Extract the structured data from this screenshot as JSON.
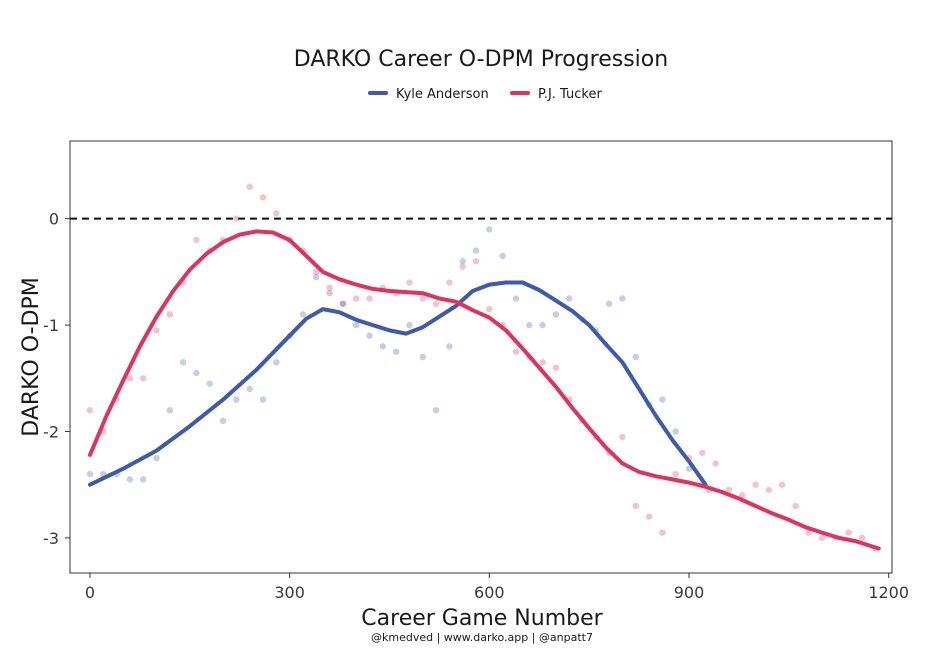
{
  "chart_data": {
    "type": "scatter",
    "title": "DARKO Career O-DPM Progression",
    "xlabel": "Career Game Number",
    "ylabel": "DARKO O-DPM",
    "caption": "@kmedved | www.darko.app | @anpatt7",
    "xlim": [
      -30,
      1205
    ],
    "ylim": [
      -3.33,
      0.73
    ],
    "x_ticks": [
      0,
      300,
      600,
      900,
      1200
    ],
    "x_tick_labels": [
      "0",
      "300",
      "600",
      "900",
      "1200"
    ],
    "y_ticks": [
      0,
      -1,
      -2,
      -3
    ],
    "y_tick_labels": [
      "0",
      "-1",
      "-2",
      "-3"
    ],
    "reference_line": {
      "y": 0,
      "style": "dashed"
    },
    "grid": false,
    "legend_position": "top",
    "series": [
      {
        "name": "Kyle Anderson",
        "color": "#3e5aae",
        "points": [
          [
            0,
            -2.4
          ],
          [
            20,
            -2.4
          ],
          [
            40,
            -2.4
          ],
          [
            60,
            -2.45
          ],
          [
            80,
            -2.45
          ],
          [
            100,
            -2.25
          ],
          [
            120,
            -1.8
          ],
          [
            140,
            -1.35
          ],
          [
            160,
            -1.45
          ],
          [
            180,
            -1.55
          ],
          [
            200,
            -1.9
          ],
          [
            220,
            -1.7
          ],
          [
            240,
            -1.6
          ],
          [
            260,
            -1.7
          ],
          [
            280,
            -1.35
          ],
          [
            300,
            -1.1
          ],
          [
            320,
            -0.9
          ],
          [
            340,
            -0.55
          ],
          [
            360,
            -0.7
          ],
          [
            380,
            -0.8
          ],
          [
            400,
            -1.0
          ],
          [
            420,
            -1.1
          ],
          [
            440,
            -1.2
          ],
          [
            460,
            -1.25
          ],
          [
            480,
            -1.0
          ],
          [
            500,
            -1.3
          ],
          [
            520,
            -1.8
          ],
          [
            540,
            -1.2
          ],
          [
            560,
            -0.4
          ],
          [
            580,
            -0.3
          ],
          [
            600,
            -0.1
          ],
          [
            620,
            -0.35
          ],
          [
            640,
            -0.75
          ],
          [
            660,
            -1.0
          ],
          [
            680,
            -1.0
          ],
          [
            700,
            -0.9
          ],
          [
            720,
            -0.75
          ],
          [
            740,
            -0.95
          ],
          [
            760,
            -1.05
          ],
          [
            780,
            -0.8
          ],
          [
            800,
            -0.75
          ],
          [
            820,
            -1.3
          ],
          [
            840,
            -1.75
          ],
          [
            860,
            -1.7
          ],
          [
            880,
            -2.0
          ],
          [
            900,
            -2.35
          ],
          [
            920,
            -2.5
          ],
          [
            930,
            -2.55
          ]
        ],
        "trend": [
          [
            0,
            -2.5
          ],
          [
            50,
            -2.35
          ],
          [
            100,
            -2.18
          ],
          [
            150,
            -1.95
          ],
          [
            200,
            -1.7
          ],
          [
            250,
            -1.42
          ],
          [
            300,
            -1.1
          ],
          [
            325,
            -0.94
          ],
          [
            350,
            -0.85
          ],
          [
            375,
            -0.88
          ],
          [
            400,
            -0.95
          ],
          [
            425,
            -1.0
          ],
          [
            450,
            -1.05
          ],
          [
            475,
            -1.08
          ],
          [
            500,
            -1.02
          ],
          [
            525,
            -0.92
          ],
          [
            550,
            -0.82
          ],
          [
            575,
            -0.68
          ],
          [
            600,
            -0.62
          ],
          [
            625,
            -0.6
          ],
          [
            650,
            -0.6
          ],
          [
            675,
            -0.67
          ],
          [
            700,
            -0.77
          ],
          [
            725,
            -0.87
          ],
          [
            750,
            -1.0
          ],
          [
            775,
            -1.18
          ],
          [
            800,
            -1.35
          ],
          [
            825,
            -1.6
          ],
          [
            850,
            -1.85
          ],
          [
            875,
            -2.08
          ],
          [
            900,
            -2.28
          ],
          [
            925,
            -2.5
          ]
        ]
      },
      {
        "name": "P.J. Tucker",
        "color": "#e0335b",
        "points": [
          [
            0,
            -1.8
          ],
          [
            20,
            -2.0
          ],
          [
            40,
            -1.7
          ],
          [
            60,
            -1.5
          ],
          [
            80,
            -1.5
          ],
          [
            100,
            -1.05
          ],
          [
            120,
            -0.9
          ],
          [
            140,
            -0.6
          ],
          [
            160,
            -0.2
          ],
          [
            180,
            -0.3
          ],
          [
            200,
            -0.2
          ],
          [
            220,
            0.0
          ],
          [
            240,
            0.3
          ],
          [
            260,
            0.2
          ],
          [
            280,
            0.05
          ],
          [
            300,
            -0.2
          ],
          [
            320,
            -0.3
          ],
          [
            340,
            -0.5
          ],
          [
            360,
            -0.65
          ],
          [
            380,
            -0.8
          ],
          [
            400,
            -0.75
          ],
          [
            420,
            -0.75
          ],
          [
            440,
            -0.65
          ],
          [
            460,
            -0.7
          ],
          [
            480,
            -0.6
          ],
          [
            500,
            -0.75
          ],
          [
            520,
            -0.8
          ],
          [
            540,
            -0.6
          ],
          [
            560,
            -0.45
          ],
          [
            580,
            -0.4
          ],
          [
            600,
            -0.85
          ],
          [
            620,
            -1.0
          ],
          [
            640,
            -1.25
          ],
          [
            660,
            -1.3
          ],
          [
            680,
            -1.35
          ],
          [
            700,
            -1.4
          ],
          [
            720,
            -1.7
          ],
          [
            740,
            -1.9
          ],
          [
            760,
            -2.05
          ],
          [
            780,
            -2.2
          ],
          [
            800,
            -2.05
          ],
          [
            820,
            -2.7
          ],
          [
            840,
            -2.8
          ],
          [
            860,
            -2.95
          ],
          [
            880,
            -2.4
          ],
          [
            900,
            -2.25
          ],
          [
            920,
            -2.2
          ],
          [
            940,
            -2.3
          ],
          [
            960,
            -2.55
          ],
          [
            980,
            -2.6
          ],
          [
            1000,
            -2.5
          ],
          [
            1020,
            -2.55
          ],
          [
            1040,
            -2.5
          ],
          [
            1060,
            -2.7
          ],
          [
            1080,
            -2.95
          ],
          [
            1100,
            -3.0
          ],
          [
            1120,
            -3.0
          ],
          [
            1140,
            -2.95
          ],
          [
            1160,
            -3.0
          ],
          [
            1180,
            -3.1
          ]
        ],
        "trend": [
          [
            0,
            -2.22
          ],
          [
            25,
            -1.85
          ],
          [
            50,
            -1.52
          ],
          [
            75,
            -1.2
          ],
          [
            100,
            -0.92
          ],
          [
            125,
            -0.68
          ],
          [
            150,
            -0.48
          ],
          [
            175,
            -0.33
          ],
          [
            200,
            -0.22
          ],
          [
            225,
            -0.15
          ],
          [
            250,
            -0.12
          ],
          [
            275,
            -0.13
          ],
          [
            300,
            -0.2
          ],
          [
            325,
            -0.35
          ],
          [
            350,
            -0.5
          ],
          [
            375,
            -0.57
          ],
          [
            400,
            -0.62
          ],
          [
            425,
            -0.66
          ],
          [
            450,
            -0.68
          ],
          [
            475,
            -0.69
          ],
          [
            500,
            -0.7
          ],
          [
            525,
            -0.75
          ],
          [
            550,
            -0.78
          ],
          [
            575,
            -0.86
          ],
          [
            600,
            -0.93
          ],
          [
            625,
            -1.05
          ],
          [
            650,
            -1.22
          ],
          [
            675,
            -1.4
          ],
          [
            700,
            -1.58
          ],
          [
            725,
            -1.78
          ],
          [
            750,
            -1.97
          ],
          [
            775,
            -2.15
          ],
          [
            800,
            -2.3
          ],
          [
            825,
            -2.38
          ],
          [
            850,
            -2.42
          ],
          [
            875,
            -2.45
          ],
          [
            900,
            -2.48
          ],
          [
            925,
            -2.52
          ],
          [
            950,
            -2.57
          ],
          [
            975,
            -2.63
          ],
          [
            1000,
            -2.7
          ],
          [
            1025,
            -2.77
          ],
          [
            1050,
            -2.83
          ],
          [
            1075,
            -2.9
          ],
          [
            1100,
            -2.95
          ],
          [
            1125,
            -3.0
          ],
          [
            1150,
            -3.03
          ],
          [
            1175,
            -3.08
          ],
          [
            1185,
            -3.1
          ]
        ]
      }
    ]
  }
}
